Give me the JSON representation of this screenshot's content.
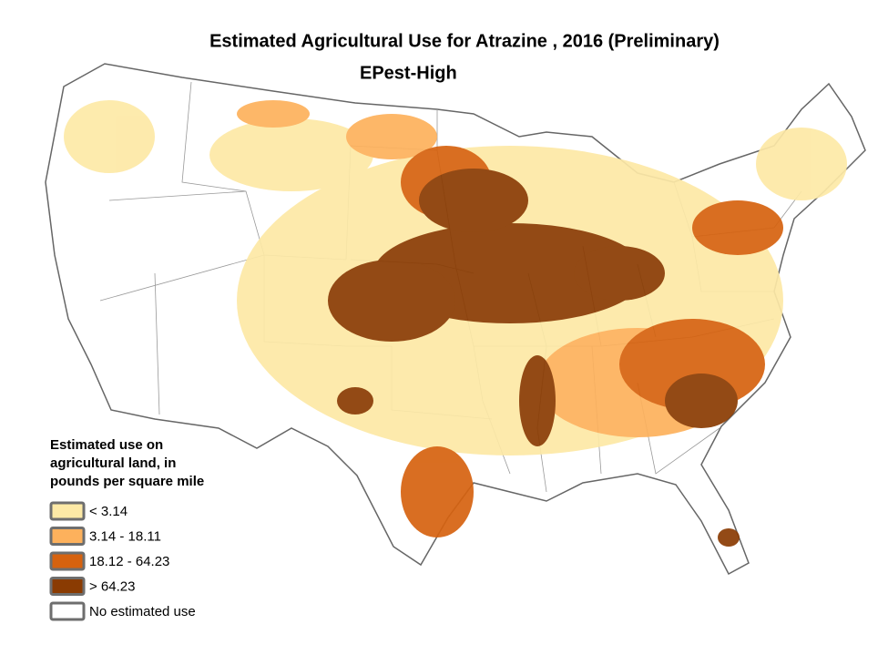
{
  "map": {
    "title": "Estimated Agricultural Use for Atrazine , 2016 (Preliminary)",
    "subtitle": "EPest-High",
    "legend": {
      "title": [
        "Estimated use on",
        "agricultural land, in",
        "pounds per square mile"
      ],
      "items": [
        {
          "label": "< 3.14",
          "color": "#fde9a6"
        },
        {
          "label": "3.14 - 18.11",
          "color": "#fdb15c"
        },
        {
          "label": "18.12 - 64.23",
          "color": "#d6620f"
        },
        {
          "label": "> 64.23",
          "color": "#8a3b02"
        },
        {
          "label": "No estimated use",
          "color": "#ffffff"
        }
      ]
    }
  }
}
